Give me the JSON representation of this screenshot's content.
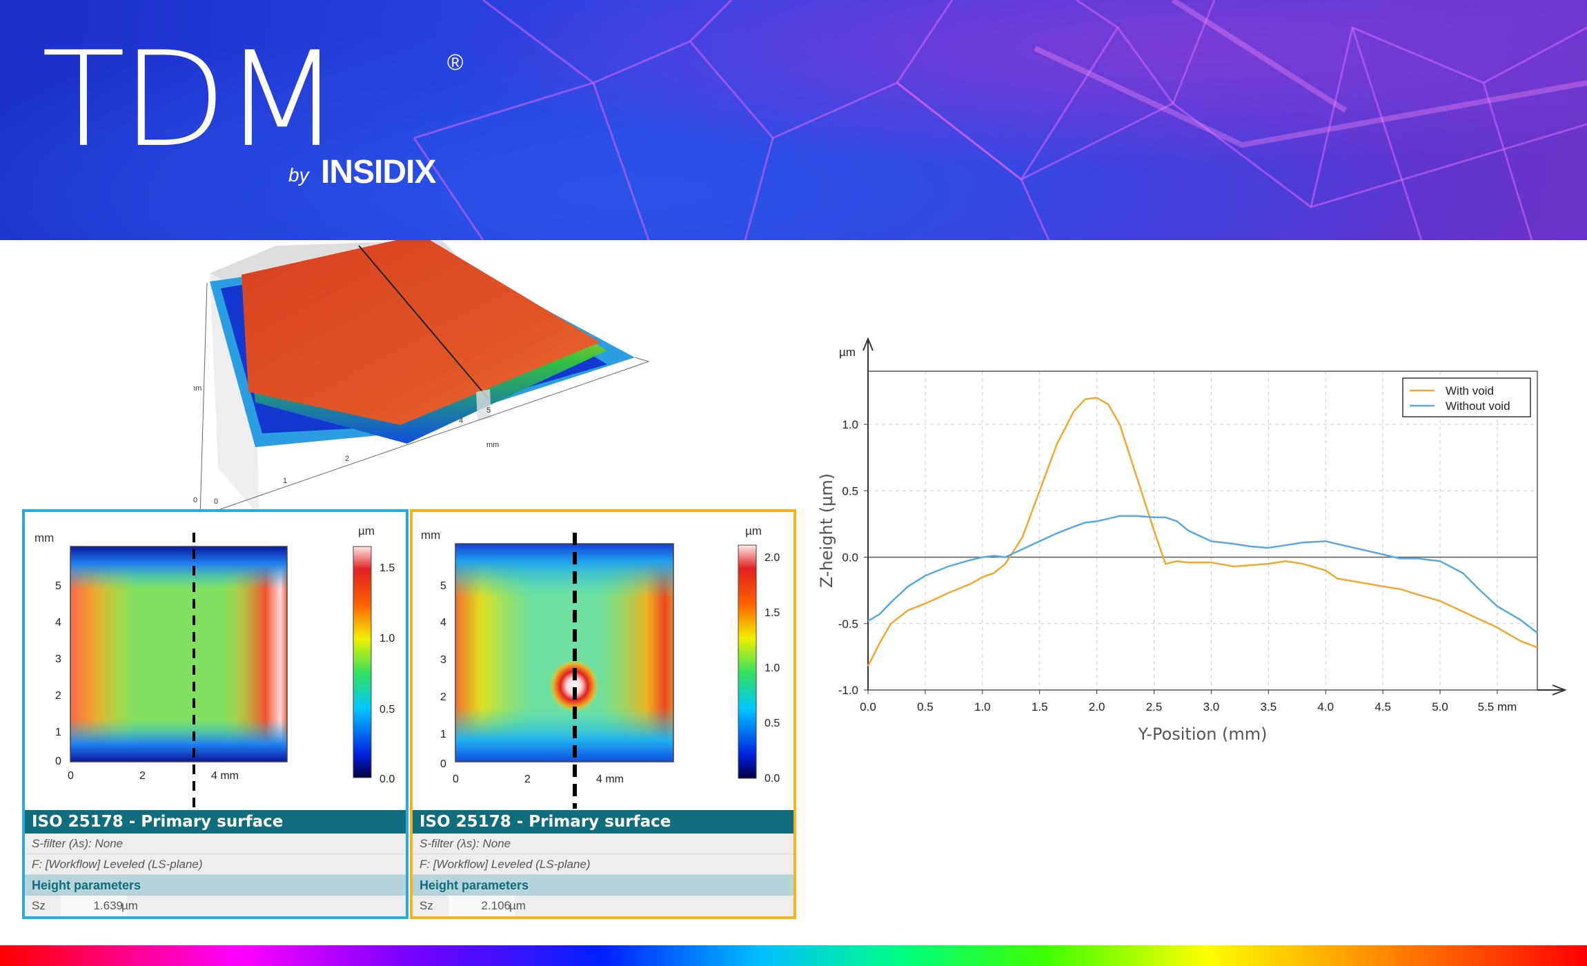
{
  "brand": {
    "name": "TDM",
    "registered": "®",
    "by": "by",
    "company": "INSIDIX"
  },
  "colors": {
    "left_border": "#29aadc",
    "right_border": "#f6b21a",
    "with_void": "#f0a830",
    "without_void": "#5aa8e0",
    "panel_header": "#0f6d7e"
  },
  "maps": [
    {
      "id": "without-void",
      "unit_y": "mm",
      "unit_bar": "µm",
      "y_ticks": [
        "5",
        "4",
        "3",
        "2",
        "1",
        "0"
      ],
      "x_ticks": [
        "0",
        "2",
        "4 mm"
      ],
      "bar_ticks": [
        "1.5",
        "1.0",
        "0.5",
        "0.0"
      ],
      "title": "ISO 25178 - Primary surface",
      "s_filter": "S-filter (λs): None",
      "f_op": "F: [Workflow] Leveled (LS-plane)",
      "params_header": "Height parameters",
      "param_name": "Sz",
      "param_value": "1.639",
      "param_unit": "µm"
    },
    {
      "id": "with-void",
      "unit_y": "mm",
      "unit_bar": "µm",
      "y_ticks": [
        "5",
        "4",
        "3",
        "2",
        "1",
        "0"
      ],
      "x_ticks": [
        "0",
        "2",
        "4 mm"
      ],
      "bar_ticks": [
        "2.0",
        "1.5",
        "1.0",
        "0.5",
        "0.0"
      ],
      "title": "ISO 25178 - Primary surface",
      "s_filter": "S-filter (λs): None",
      "f_op": "F: [Workflow] Leveled (LS-plane)",
      "params_header": "Height parameters",
      "param_name": "Sz",
      "param_value": "2.106",
      "param_unit": "µm"
    }
  ],
  "chart_data": {
    "type": "line",
    "xlabel": "Y-Position (mm)",
    "ylabel": "Z-height (µm)",
    "y_unit": "µm",
    "x_unit": "mm",
    "xlim": [
      0,
      5.85
    ],
    "ylim": [
      -1.0,
      1.4
    ],
    "x_ticks": [
      "0.0",
      "0.5",
      "1.0",
      "1.5",
      "2.0",
      "2.5",
      "3.0",
      "3.5",
      "4.0",
      "4.5",
      "5.0",
      "5.5 mm"
    ],
    "y_ticks": [
      "1.0",
      "0.5",
      "0.0",
      "-0.5",
      "-1.0"
    ],
    "grid": true,
    "legend": "top-right",
    "series": [
      {
        "name": "With void",
        "color": "#f0a830",
        "x": [
          0,
          0.1,
          0.2,
          0.35,
          0.5,
          0.7,
          0.9,
          1.0,
          1.1,
          1.2,
          1.35,
          1.5,
          1.65,
          1.8,
          1.9,
          2.0,
          2.1,
          2.2,
          2.35,
          2.5,
          2.6,
          2.7,
          2.8,
          3.0,
          3.2,
          3.35,
          3.5,
          3.65,
          3.8,
          4.0,
          4.1,
          4.3,
          4.5,
          4.65,
          4.8,
          5.0,
          5.2,
          5.35,
          5.5,
          5.7,
          5.85
        ],
        "y": [
          -0.82,
          -0.65,
          -0.5,
          -0.4,
          -0.35,
          -0.27,
          -0.2,
          -0.15,
          -0.12,
          -0.05,
          0.15,
          0.5,
          0.85,
          1.1,
          1.19,
          1.2,
          1.15,
          1.0,
          0.6,
          0.2,
          -0.05,
          -0.03,
          -0.04,
          -0.04,
          -0.07,
          -0.06,
          -0.05,
          -0.03,
          -0.05,
          -0.1,
          -0.16,
          -0.19,
          -0.22,
          -0.24,
          -0.28,
          -0.33,
          -0.41,
          -0.47,
          -0.53,
          -0.63,
          -0.68
        ]
      },
      {
        "name": "Without void",
        "color": "#5aa8e0",
        "x": [
          0,
          0.1,
          0.2,
          0.35,
          0.5,
          0.7,
          0.9,
          1.0,
          1.1,
          1.2,
          1.35,
          1.5,
          1.65,
          1.8,
          1.9,
          2.0,
          2.1,
          2.2,
          2.35,
          2.5,
          2.6,
          2.7,
          2.8,
          3.0,
          3.2,
          3.35,
          3.5,
          3.65,
          3.8,
          4.0,
          4.1,
          4.3,
          4.5,
          4.65,
          4.8,
          5.0,
          5.2,
          5.35,
          5.5,
          5.7,
          5.85
        ],
        "y": [
          -0.48,
          -0.43,
          -0.34,
          -0.22,
          -0.14,
          -0.07,
          -0.02,
          0.0,
          0.01,
          0.0,
          0.06,
          0.12,
          0.18,
          0.23,
          0.26,
          0.27,
          0.29,
          0.31,
          0.31,
          0.3,
          0.3,
          0.27,
          0.2,
          0.12,
          0.1,
          0.08,
          0.07,
          0.09,
          0.11,
          0.12,
          0.1,
          0.06,
          0.02,
          -0.01,
          -0.01,
          -0.03,
          -0.12,
          -0.25,
          -0.37,
          -0.47,
          -0.57
        ]
      }
    ]
  }
}
